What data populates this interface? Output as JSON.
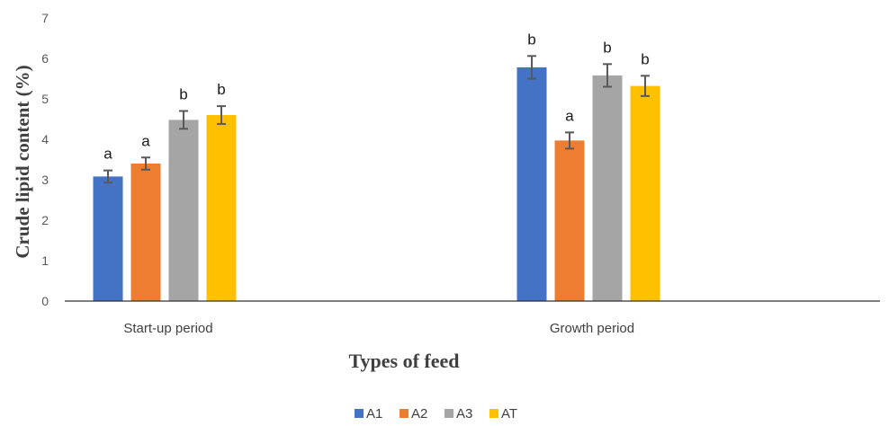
{
  "chart_data": {
    "type": "bar",
    "title": "",
    "xlabel": "Types of feed",
    "ylabel": "Crude lipid content (%)",
    "ylim": [
      0,
      7
    ],
    "yticks": [
      0,
      1,
      2,
      3,
      4,
      5,
      6,
      7
    ],
    "grid": false,
    "legend_position": "bottom",
    "categories": [
      "Start-up period",
      "Growth period"
    ],
    "series": [
      {
        "name": "A1",
        "color": "#4472C4",
        "values": [
          3.08,
          5.78
        ],
        "errors": [
          0.15,
          0.28
        ],
        "labels": [
          "a",
          "b"
        ]
      },
      {
        "name": "A2",
        "color": "#ED7D31",
        "values": [
          3.4,
          3.97
        ],
        "errors": [
          0.15,
          0.2
        ],
        "labels": [
          "a",
          "a"
        ]
      },
      {
        "name": "A3",
        "color": "#A5A5A5",
        "values": [
          4.48,
          5.58
        ],
        "errors": [
          0.22,
          0.28
        ],
        "labels": [
          "b",
          "b"
        ]
      },
      {
        "name": "AT",
        "color": "#FFC000",
        "values": [
          4.6,
          5.32
        ],
        "errors": [
          0.22,
          0.25
        ],
        "labels": [
          "b",
          "b"
        ]
      }
    ]
  }
}
